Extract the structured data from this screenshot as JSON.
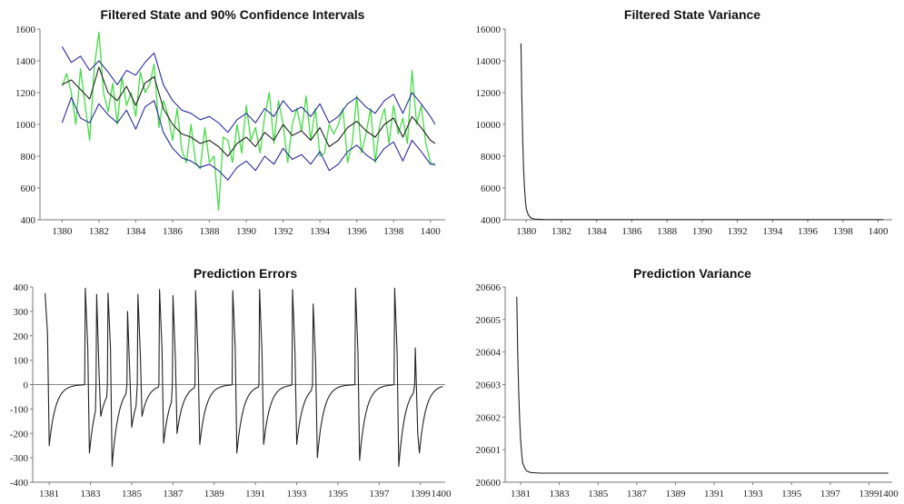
{
  "chart_data": [
    {
      "id": "p1",
      "type": "line",
      "title": "Filtered State and 90% Confidence Intervals",
      "xlabel": "",
      "ylabel": "",
      "xlim": [
        1378.8,
        1400.8
      ],
      "ylim": [
        400,
        1600
      ],
      "xticks": [
        1380,
        1382,
        1384,
        1386,
        1388,
        1390,
        1392,
        1394,
        1396,
        1398,
        1400
      ],
      "yticks": [
        400,
        600,
        800,
        1000,
        1200,
        1400,
        1600
      ],
      "grid": false,
      "legend": "none",
      "series": [
        {
          "role": "observed",
          "color": "#44dd44",
          "x": [
            1380.0,
            1380.25,
            1380.5,
            1380.75,
            1381.0,
            1381.25,
            1381.5,
            1381.75,
            1382.0,
            1382.25,
            1382.5,
            1382.75,
            1383.0,
            1383.25,
            1383.5,
            1383.75,
            1384.0,
            1384.25,
            1384.5,
            1384.75,
            1385.0,
            1385.25,
            1385.5,
            1385.75,
            1386.0,
            1386.25,
            1386.5,
            1386.75,
            1387.0,
            1387.25,
            1387.5,
            1387.75,
            1388.0,
            1388.25,
            1388.5,
            1388.75,
            1389.0,
            1389.25,
            1389.5,
            1389.75,
            1390.0,
            1390.25,
            1390.5,
            1390.75,
            1391.0,
            1391.25,
            1391.5,
            1391.75,
            1392.0,
            1392.25,
            1392.5,
            1392.75,
            1393.0,
            1393.25,
            1393.5,
            1393.75,
            1394.0,
            1394.25,
            1394.5,
            1394.75,
            1395.0,
            1395.25,
            1395.5,
            1395.75,
            1396.0,
            1396.25,
            1396.5,
            1396.75,
            1397.0,
            1397.25,
            1397.5,
            1397.75,
            1398.0,
            1398.25,
            1398.5,
            1398.75,
            1399.0,
            1399.25,
            1399.5,
            1399.75,
            1400.0,
            1400.25
          ],
          "y": [
            1240,
            1320,
            1200,
            1000,
            1350,
            1120,
            900,
            1360,
            1580,
            1200,
            1080,
            1260,
            1000,
            1300,
            1120,
            1200,
            1050,
            1330,
            1200,
            1250,
            1380,
            980,
            1150,
            1060,
            900,
            1100,
            840,
            760,
            1000,
            760,
            720,
            980,
            760,
            800,
            460,
            920,
            900,
            760,
            1000,
            820,
            1120,
            900,
            980,
            820,
            1050,
            1200,
            880,
            1150,
            1000,
            760,
            1000,
            1100,
            960,
            1180,
            900,
            1100,
            800,
            820,
            1000,
            940,
            1000,
            1100,
            760,
            880,
            1180,
            820,
            940,
            1100,
            760,
            1000,
            1100,
            880,
            1120,
            940,
            1040,
            880,
            1340,
            1000,
            1120,
            880,
            760,
            740
          ]
        },
        {
          "role": "filtered-state",
          "color": "#222222",
          "x": [
            1380.0,
            1380.5,
            1381.0,
            1381.5,
            1382.0,
            1382.5,
            1383.0,
            1383.5,
            1384.0,
            1384.5,
            1385.0,
            1385.5,
            1386.0,
            1386.5,
            1387.0,
            1387.5,
            1388.0,
            1388.5,
            1389.0,
            1389.5,
            1390.0,
            1390.5,
            1391.0,
            1391.5,
            1392.0,
            1392.5,
            1393.0,
            1393.5,
            1394.0,
            1394.5,
            1395.0,
            1395.5,
            1396.0,
            1396.5,
            1397.0,
            1397.5,
            1398.0,
            1398.5,
            1399.0,
            1399.5,
            1400.0,
            1400.25
          ],
          "y": [
            1250,
            1280,
            1220,
            1160,
            1360,
            1200,
            1150,
            1240,
            1120,
            1260,
            1300,
            1100,
            1000,
            940,
            920,
            880,
            900,
            860,
            800,
            880,
            920,
            860,
            950,
            900,
            1000,
            930,
            960,
            900,
            980,
            860,
            900,
            980,
            1020,
            960,
            920,
            1000,
            1040,
            920,
            1050,
            980,
            900,
            880
          ]
        },
        {
          "role": "upper-90",
          "color": "#2a2aa0",
          "x": [
            1380.0,
            1380.5,
            1381.0,
            1381.5,
            1382.0,
            1382.5,
            1383.0,
            1383.5,
            1384.0,
            1384.5,
            1385.0,
            1385.5,
            1386.0,
            1386.5,
            1387.0,
            1387.5,
            1388.0,
            1388.5,
            1389.0,
            1389.5,
            1390.0,
            1390.5,
            1391.0,
            1391.5,
            1392.0,
            1392.5,
            1393.0,
            1393.5,
            1394.0,
            1394.5,
            1395.0,
            1395.5,
            1396.0,
            1396.5,
            1397.0,
            1397.5,
            1398.0,
            1398.5,
            1399.0,
            1399.5,
            1400.0,
            1400.25
          ],
          "y": [
            1490,
            1390,
            1430,
            1340,
            1400,
            1330,
            1250,
            1340,
            1310,
            1390,
            1450,
            1250,
            1150,
            1090,
            1070,
            1030,
            1050,
            1010,
            950,
            1030,
            1070,
            1010,
            1100,
            1050,
            1150,
            1080,
            1110,
            1050,
            1130,
            1010,
            1050,
            1130,
            1170,
            1110,
            1070,
            1150,
            1190,
            1070,
            1200,
            1130,
            1050,
            1000
          ]
        },
        {
          "role": "lower-90",
          "color": "#2a2aa0",
          "x": [
            1380.0,
            1380.5,
            1381.0,
            1381.5,
            1382.0,
            1382.5,
            1383.0,
            1383.5,
            1384.0,
            1384.5,
            1385.0,
            1385.5,
            1386.0,
            1386.5,
            1387.0,
            1387.5,
            1388.0,
            1388.5,
            1389.0,
            1389.5,
            1390.0,
            1390.5,
            1391.0,
            1391.5,
            1392.0,
            1392.5,
            1393.0,
            1393.5,
            1394.0,
            1394.5,
            1395.0,
            1395.5,
            1396.0,
            1396.5,
            1397.0,
            1397.5,
            1398.0,
            1398.5,
            1399.0,
            1399.5,
            1400.0,
            1400.25
          ],
          "y": [
            1010,
            1170,
            1040,
            1010,
            1130,
            1060,
            1010,
            1090,
            970,
            1110,
            1150,
            950,
            850,
            790,
            770,
            730,
            750,
            710,
            650,
            730,
            770,
            710,
            800,
            750,
            850,
            780,
            810,
            750,
            830,
            710,
            750,
            830,
            870,
            810,
            770,
            850,
            890,
            770,
            900,
            830,
            750,
            750
          ]
        }
      ]
    },
    {
      "id": "p2",
      "type": "line",
      "title": "Filtered State Variance",
      "xlabel": "",
      "ylabel": "",
      "xlim": [
        1378.8,
        1400.8
      ],
      "ylim": [
        4000,
        16000
      ],
      "xticks": [
        1380,
        1382,
        1384,
        1386,
        1388,
        1390,
        1392,
        1394,
        1396,
        1398,
        1400
      ],
      "yticks": [
        4000,
        6000,
        8000,
        10000,
        12000,
        14000,
        16000
      ],
      "grid": false,
      "legend": "none",
      "series": [
        {
          "role": "variance",
          "color": "#222222",
          "x": [
            1379.7,
            1379.75,
            1379.8,
            1379.85,
            1379.9,
            1379.95,
            1380.0,
            1380.1,
            1380.2,
            1380.3,
            1380.5,
            1381.0,
            1382.0,
            1390.0,
            1400.3
          ],
          "y": [
            15100,
            11500,
            8900,
            7200,
            6000,
            5200,
            4700,
            4350,
            4180,
            4090,
            4040,
            4020,
            4010,
            4010,
            4010
          ]
        }
      ]
    },
    {
      "id": "p3",
      "type": "line",
      "title": "Prediction Errors",
      "xlabel": "",
      "ylabel": "",
      "xlim": [
        1380.2,
        1400.2
      ],
      "ylim": [
        -400,
        400
      ],
      "xticks": [
        1381,
        1383,
        1385,
        1387,
        1389,
        1391,
        1393,
        1395,
        1397,
        1399
      ],
      "xtick_last": "1400",
      "yticks": [
        -400,
        -300,
        -200,
        -100,
        0,
        100,
        200,
        300,
        400
      ],
      "zero_line": true,
      "grid": false,
      "legend": "none",
      "pulses": [
        {
          "x": 1380.8,
          "top": 375,
          "turn": 210,
          "bottom": -250
        },
        {
          "x": 1382.75,
          "top": 395,
          "turn": 150,
          "bottom": -280
        },
        {
          "x": 1383.3,
          "top": 370,
          "turn": 40,
          "bottom": -130
        },
        {
          "x": 1383.85,
          "top": 375,
          "turn": 150,
          "bottom": -335
        },
        {
          "x": 1384.8,
          "top": 300,
          "turn": 20,
          "bottom": -175
        },
        {
          "x": 1385.3,
          "top": 370,
          "turn": 120,
          "bottom": -130
        },
        {
          "x": 1386.35,
          "top": 390,
          "turn": 150,
          "bottom": -240
        },
        {
          "x": 1387.0,
          "top": 365,
          "turn": 100,
          "bottom": -200
        },
        {
          "x": 1388.1,
          "top": 385,
          "turn": 100,
          "bottom": -245
        },
        {
          "x": 1389.9,
          "top": 385,
          "turn": 150,
          "bottom": -280
        },
        {
          "x": 1391.2,
          "top": 390,
          "turn": 130,
          "bottom": -245
        },
        {
          "x": 1392.8,
          "top": 390,
          "turn": 130,
          "bottom": -245
        },
        {
          "x": 1393.8,
          "top": 330,
          "turn": 90,
          "bottom": -300
        },
        {
          "x": 1395.85,
          "top": 395,
          "turn": 130,
          "bottom": -310
        },
        {
          "x": 1397.75,
          "top": 395,
          "turn": 130,
          "bottom": -335
        },
        {
          "x": 1398.75,
          "top": 150,
          "turn": -200,
          "bottom": -280
        }
      ]
    },
    {
      "id": "p4",
      "type": "line",
      "title": "Prediction Variance",
      "xlabel": "",
      "ylabel": "",
      "xlim": [
        1380.2,
        1400.2
      ],
      "ylim": [
        20600,
        20606
      ],
      "xticks": [
        1381,
        1383,
        1385,
        1387,
        1389,
        1391,
        1393,
        1395,
        1397,
        1399
      ],
      "xtick_last": "1400",
      "yticks": [
        20600,
        20601,
        20602,
        20603,
        20604,
        20605,
        20606
      ],
      "grid": false,
      "legend": "none",
      "series": [
        {
          "role": "variance",
          "color": "#222222",
          "x": [
            1380.8,
            1380.85,
            1380.9,
            1380.95,
            1381.0,
            1381.05,
            1381.1,
            1381.2,
            1381.3,
            1381.5,
            1382.0,
            1390.0,
            1400.0
          ],
          "y": [
            20605.7,
            20604.0,
            20602.8,
            20601.9,
            20601.3,
            20600.9,
            20600.6,
            20600.45,
            20600.35,
            20600.3,
            20600.28,
            20600.28,
            20600.28
          ]
        }
      ]
    }
  ]
}
